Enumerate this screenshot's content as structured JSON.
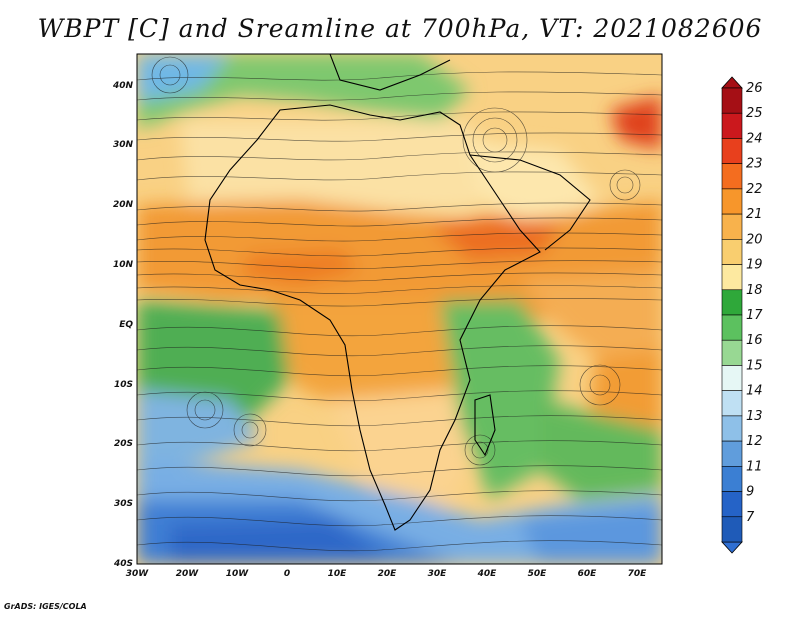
{
  "title": "WBPT [C] and Sreamline at 700hPa, VT: 2021082606",
  "credit": "GrADS: IGES/COLA",
  "map": {
    "lon_labels": [
      "30W",
      "20W",
      "10W",
      "0",
      "10E",
      "20E",
      "30E",
      "40E",
      "50E",
      "60E",
      "70E"
    ],
    "lat_labels": [
      "40N",
      "30N",
      "20N",
      "10N",
      "EQ",
      "10S",
      "20S",
      "30S",
      "40S"
    ]
  },
  "colorbar": {
    "levels": [
      "26",
      "25",
      "24",
      "23",
      "22",
      "21",
      "20",
      "19",
      "18",
      "17",
      "16",
      "15",
      "14",
      "13",
      "12",
      "11",
      "9",
      "7"
    ],
    "colors": [
      "#a50f15",
      "#cb181d",
      "#e8401d",
      "#f46d1f",
      "#f7962b",
      "#f8b24c",
      "#f9ce6f",
      "#fde9a0",
      "#2fa83a",
      "#5cc15f",
      "#98d893",
      "#e6f7f5",
      "#bfe0f3",
      "#8ec0e8",
      "#609ddc",
      "#3b7fd3",
      "#2563c7",
      "#1f5bb8"
    ]
  },
  "regions": [
    {
      "name": "tropical-band",
      "color": "#f4a640"
    },
    {
      "name": "sahara",
      "color": "#f9ce7a"
    },
    {
      "name": "southern-africa",
      "color": "#f7b765"
    },
    {
      "name": "atlantic-south",
      "color": "#5ab75c"
    },
    {
      "name": "southern-ocean",
      "color": "#7fb2e6"
    }
  ]
}
